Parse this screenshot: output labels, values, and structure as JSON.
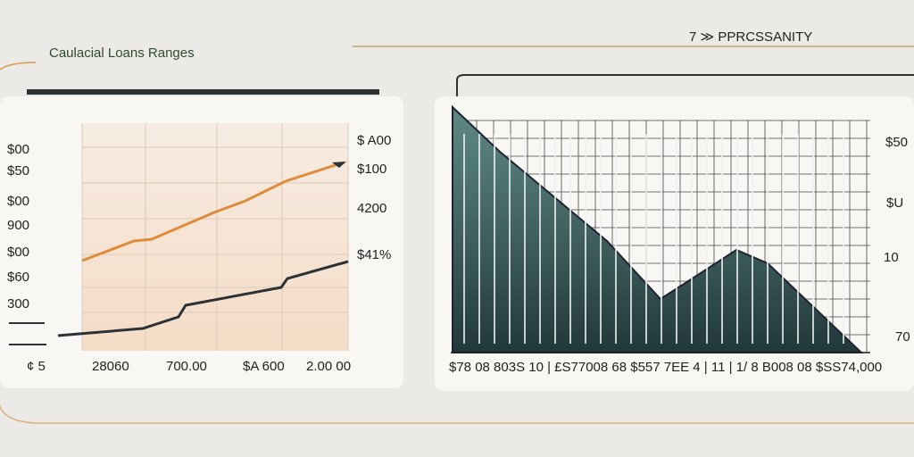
{
  "header": {
    "title": "Caulacial Loans Ranges",
    "tag": "7 ≫ PPRCSSANITY"
  },
  "left_panel": {
    "left_labels": [
      "$00",
      "$50",
      "$00",
      "900",
      "$00",
      "$60",
      "300",
      "¢ 5"
    ],
    "right_labels": [
      "$ A00",
      "$100",
      "4200",
      "$41%"
    ],
    "bottom_labels": [
      "28060",
      "700.00",
      "$A 600",
      "2.00 00"
    ]
  },
  "right_panel": {
    "right_labels": [
      "$50",
      "$U",
      "10",
      "70"
    ],
    "bottom_label": "$78 08 803S 10 | £S77008 68 $557 7EE 4 | 11 | 1/ 8 B008 08 $SS74,000"
  }
}
